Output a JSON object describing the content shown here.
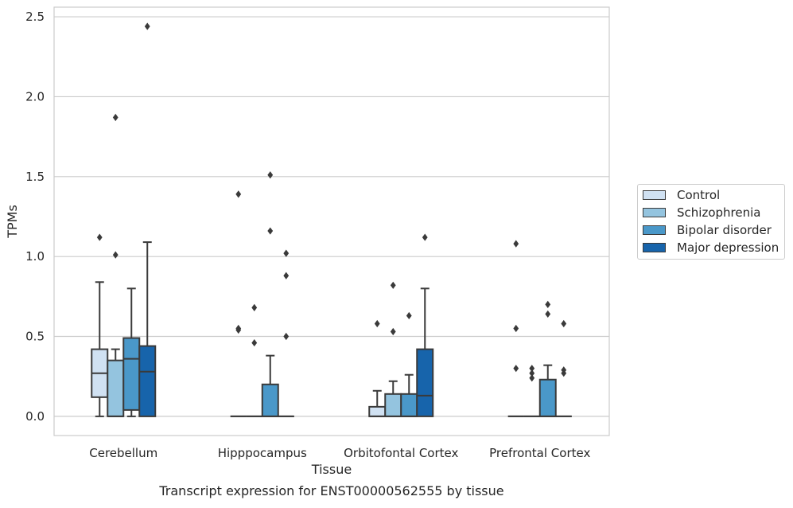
{
  "chart_data": {
    "type": "boxplot",
    "title": "Transcript expression for ENST00000562555 by tissue",
    "xlabel": "Tissue",
    "ylabel": "TPMs",
    "ylim": [
      -0.12,
      2.56
    ],
    "yticks": [
      0.0,
      0.5,
      1.0,
      1.5,
      2.0,
      2.5
    ],
    "ytick_labels": [
      "0.0",
      "0.5",
      "1.0",
      "1.5",
      "2.0",
      "2.5"
    ],
    "grid": "horizontal",
    "legend_position": "right",
    "categories": [
      "Cerebellum",
      "Hipppocampus",
      "Orbitofontal Cortex",
      "Prefrontal Cortex"
    ],
    "series": [
      {
        "name": "Control",
        "color": "#d0e1f2",
        "boxes": [
          {
            "whislo": 0.0,
            "q1": 0.12,
            "med": 0.27,
            "q3": 0.42,
            "whishi": 0.84,
            "fliers": [
              1.12
            ]
          },
          {
            "whislo": 0.0,
            "q1": 0.0,
            "med": 0.0,
            "q3": 0.0,
            "whishi": 0.0,
            "fliers": [
              0.54,
              0.55,
              1.39
            ]
          },
          {
            "whislo": 0.0,
            "q1": 0.0,
            "med": 0.0,
            "q3": 0.06,
            "whishi": 0.16,
            "fliers": [
              0.58
            ]
          },
          {
            "whislo": 0.0,
            "q1": 0.0,
            "med": 0.0,
            "q3": 0.0,
            "whishi": 0.0,
            "fliers": [
              0.3,
              0.55,
              1.08
            ]
          }
        ]
      },
      {
        "name": "Schizophrenia",
        "color": "#94c4df",
        "boxes": [
          {
            "whislo": 0.0,
            "q1": 0.0,
            "med": 0.0,
            "q3": 0.35,
            "whishi": 0.42,
            "fliers": [
              1.01,
              1.87
            ]
          },
          {
            "whislo": 0.0,
            "q1": 0.0,
            "med": 0.0,
            "q3": 0.0,
            "whishi": 0.0,
            "fliers": [
              0.46,
              0.68
            ]
          },
          {
            "whislo": 0.0,
            "q1": 0.0,
            "med": 0.0,
            "q3": 0.14,
            "whishi": 0.22,
            "fliers": [
              0.53,
              0.82
            ]
          },
          {
            "whislo": 0.0,
            "q1": 0.0,
            "med": 0.0,
            "q3": 0.0,
            "whishi": 0.0,
            "fliers": [
              0.24,
              0.27,
              0.3
            ]
          }
        ]
      },
      {
        "name": "Bipolar disorder",
        "color": "#4a98c9",
        "boxes": [
          {
            "whislo": 0.0,
            "q1": 0.04,
            "med": 0.36,
            "q3": 0.49,
            "whishi": 0.8,
            "fliers": []
          },
          {
            "whislo": 0.0,
            "q1": 0.0,
            "med": 0.0,
            "q3": 0.2,
            "whishi": 0.38,
            "fliers": [
              1.16,
              1.51
            ]
          },
          {
            "whislo": 0.0,
            "q1": 0.0,
            "med": 0.0,
            "q3": 0.14,
            "whishi": 0.26,
            "fliers": [
              0.63
            ]
          },
          {
            "whislo": 0.0,
            "q1": 0.0,
            "med": 0.0,
            "q3": 0.23,
            "whishi": 0.32,
            "fliers": [
              0.64,
              0.7
            ]
          }
        ]
      },
      {
        "name": "Major depression",
        "color": "#1764ab",
        "boxes": [
          {
            "whislo": 0.0,
            "q1": 0.0,
            "med": 0.28,
            "q3": 0.44,
            "whishi": 1.09,
            "fliers": [
              2.44
            ]
          },
          {
            "whislo": 0.0,
            "q1": 0.0,
            "med": 0.0,
            "q3": 0.0,
            "whishi": 0.0,
            "fliers": [
              0.5,
              0.88,
              1.02
            ]
          },
          {
            "whislo": 0.0,
            "q1": 0.0,
            "med": 0.13,
            "q3": 0.42,
            "whishi": 0.8,
            "fliers": [
              1.12
            ]
          },
          {
            "whislo": 0.0,
            "q1": 0.0,
            "med": 0.0,
            "q3": 0.0,
            "whishi": 0.0,
            "fliers": [
              0.27,
              0.29,
              0.58
            ]
          }
        ]
      }
    ]
  }
}
